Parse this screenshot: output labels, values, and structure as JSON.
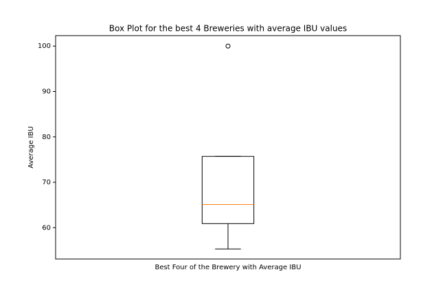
{
  "chart_data": {
    "type": "box",
    "title": "Box Plot for the best 4 Breweries with average IBU values",
    "x_label": "Best Four of the Brewery with Average IBU",
    "y_label": "Average IBU",
    "boxes": [
      {
        "whislo": 55.3,
        "q1": 60.9,
        "med": 65.1,
        "q3": 75.7,
        "whishi": 75.7,
        "fliers": [
          100
        ]
      }
    ],
    "box_color": "#000000",
    "median_color": "#ff7f0e",
    "ylim": [
      53.1,
      102.3
    ],
    "yticks": [
      60,
      70,
      80,
      90,
      100
    ],
    "grid": false
  }
}
